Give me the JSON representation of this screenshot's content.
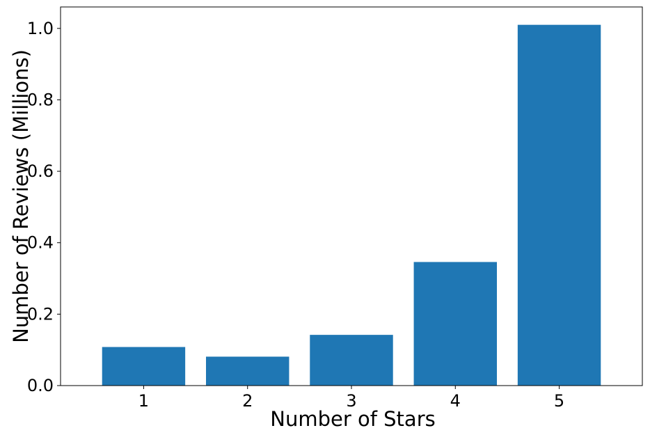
{
  "chart_data": {
    "type": "bar",
    "categories": [
      "1",
      "2",
      "3",
      "4",
      "5"
    ],
    "values": [
      0.108,
      0.081,
      0.142,
      0.346,
      1.01
    ],
    "xlabel": "Number of Stars",
    "ylabel": "Number of Reviews (Millions)",
    "ylim": [
      0,
      1.06
    ],
    "yticks": [
      "0.0",
      "0.2",
      "0.4",
      "0.6",
      "0.8",
      "1.0"
    ],
    "bar_color": "#1f77b4",
    "grid": false,
    "legend": "none"
  }
}
